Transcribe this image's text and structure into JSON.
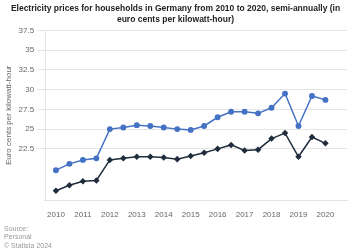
{
  "chart_data": {
    "type": "line",
    "title": "Electricity prices for households in Germany from 2010 to 2020, semi-annually (in\neuro cents per kilowatt-hour)",
    "ylabel": "Euro cents per kilowatt-hour",
    "source": "Source:\nPersonal\n© Statista 2024",
    "x": [
      2010,
      2010.5,
      2011,
      2011.5,
      2012,
      2012.5,
      2013,
      2013.5,
      2014,
      2014.5,
      2015,
      2015.5,
      2016,
      2016.5,
      2017,
      2017.5,
      2018,
      2018.5,
      2019,
      2019.5,
      2020
    ],
    "xlim": [
      2009.6,
      2020.8
    ],
    "xticks": [
      2010,
      2011,
      2012,
      2013,
      2014,
      2015,
      2016,
      2017,
      2018,
      2019,
      2020
    ],
    "ylim": [
      16.0,
      37.5
    ],
    "yticks": [
      22.5,
      25,
      27.5,
      30,
      32.5,
      35,
      37.5
    ],
    "grid": "y",
    "series": [
      {
        "color": "#4472c4",
        "marker": "circle",
        "values": [
          19.8,
          20.6,
          21.1,
          21.3,
          25.0,
          25.2,
          25.5,
          25.4,
          25.2,
          25.0,
          24.9,
          25.4,
          26.5,
          27.2,
          27.2,
          27.0,
          27.7,
          29.5,
          25.4,
          29.2,
          28.7
        ]
      },
      {
        "color": "#1f2d3d",
        "marker": "diamond",
        "values": [
          17.2,
          17.9,
          18.4,
          18.5,
          21.1,
          21.3,
          21.5,
          21.5,
          21.4,
          21.2,
          21.6,
          22.0,
          22.5,
          23.0,
          22.3,
          22.4,
          23.8,
          24.5,
          21.5,
          24.0,
          23.2
        ]
      }
    ]
  }
}
